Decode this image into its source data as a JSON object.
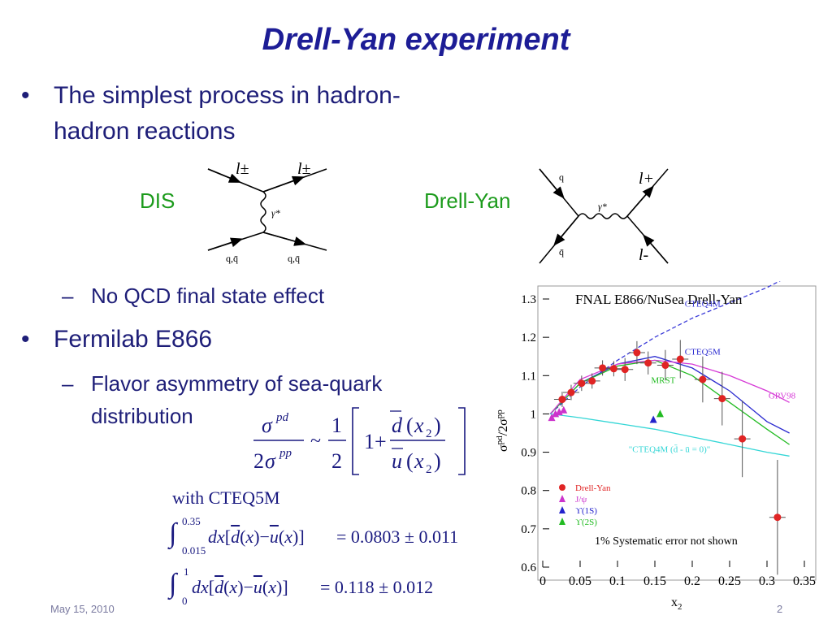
{
  "slide": {
    "title": "Drell-Yan experiment",
    "bullet1_line1": "The simplest process in hadron-",
    "bullet1_line2": "hadron reactions",
    "dis_label": "DIS",
    "drellyan_label": "Drell-Yan",
    "sub1": "No QCD final state effect",
    "bullet2": "Fermilab E866",
    "sub2_line1": "Flavor asymmetry of sea-quark",
    "sub2_line2": "distribution",
    "with_cteq": "with  CTEQ5M",
    "integral1_result": "= 0.0803 ± 0.011",
    "integral2_result": "= 0.118 ± 0.012",
    "footer_date": "May 15, 2010",
    "page_number": "2"
  },
  "dis_diagram": {
    "lepton_in": "l±",
    "lepton_out": "l±",
    "photon": "γ*",
    "quark_in": "q,q̄",
    "quark_out": "q,q̄"
  },
  "dy_diagram": {
    "quark": "q",
    "antiquark": "q̄",
    "photon": "γ*",
    "lepton_plus": "l+",
    "lepton_minus": "l-"
  },
  "chart_data": {
    "type": "scatter",
    "title": "FNAL E866/NuSea Drell-Yan",
    "xlabel": "x2",
    "ylabel": "σpd/2σpp",
    "xlim": [
      0,
      0.35
    ],
    "ylim": [
      0.6,
      1.35
    ],
    "x_ticks": [
      "0",
      "0.05",
      "0.1",
      "0.15",
      "0.2",
      "0.25",
      "0.3",
      "0.35"
    ],
    "y_ticks": [
      "0.6",
      "0.7",
      "0.8",
      "0.9",
      "1",
      "1.1",
      "1.2",
      "1.3"
    ],
    "annotation": "1% Systematic error not shown",
    "curves": [
      {
        "name": "CTEQ4M",
        "color": "#3a3ad8",
        "dashed": true,
        "points": [
          [
            0.01,
            1.0
          ],
          [
            0.05,
            1.07
          ],
          [
            0.1,
            1.14
          ],
          [
            0.15,
            1.2
          ],
          [
            0.2,
            1.25
          ],
          [
            0.25,
            1.29
          ],
          [
            0.3,
            1.33
          ],
          [
            0.33,
            1.36
          ]
        ]
      },
      {
        "name": "CTEQ5M",
        "color": "#2b2bd0",
        "dashed": false,
        "points": [
          [
            0.01,
            1.0
          ],
          [
            0.05,
            1.08
          ],
          [
            0.1,
            1.13
          ],
          [
            0.15,
            1.15
          ],
          [
            0.2,
            1.12
          ],
          [
            0.25,
            1.06
          ],
          [
            0.3,
            0.98
          ],
          [
            0.33,
            0.95
          ]
        ]
      },
      {
        "name": "MRST",
        "color": "#22bb22",
        "dashed": false,
        "points": [
          [
            0.01,
            1.0
          ],
          [
            0.05,
            1.08
          ],
          [
            0.1,
            1.125
          ],
          [
            0.15,
            1.14
          ],
          [
            0.2,
            1.1
          ],
          [
            0.25,
            1.03
          ],
          [
            0.3,
            0.96
          ],
          [
            0.33,
            0.92
          ]
        ]
      },
      {
        "name": "GRV98",
        "color": "#d63ad6",
        "dashed": false,
        "points": [
          [
            0.01,
            1.0
          ],
          [
            0.05,
            1.09
          ],
          [
            0.1,
            1.13
          ],
          [
            0.15,
            1.14
          ],
          [
            0.2,
            1.13
          ],
          [
            0.25,
            1.1
          ],
          [
            0.3,
            1.06
          ],
          [
            0.33,
            1.03
          ]
        ]
      },
      {
        "name": "\"CTEQ4M (d̄ - ū = 0)\"",
        "color": "#33d6d6",
        "dashed": false,
        "points": [
          [
            0.01,
            1.0
          ],
          [
            0.05,
            0.99
          ],
          [
            0.1,
            0.975
          ],
          [
            0.15,
            0.96
          ],
          [
            0.2,
            0.94
          ],
          [
            0.25,
            0.92
          ],
          [
            0.3,
            0.9
          ],
          [
            0.33,
            0.89
          ]
        ]
      }
    ],
    "series": [
      {
        "name": "Drell-Yan",
        "color": "#e02424",
        "marker": "circle",
        "points": [
          [
            0.026,
            1.038
          ],
          [
            0.038,
            1.056
          ],
          [
            0.052,
            1.08
          ],
          [
            0.066,
            1.086
          ],
          [
            0.08,
            1.12
          ],
          [
            0.095,
            1.118
          ],
          [
            0.11,
            1.116
          ],
          [
            0.126,
            1.16
          ],
          [
            0.141,
            1.133
          ],
          [
            0.164,
            1.127
          ],
          [
            0.184,
            1.143
          ],
          [
            0.214,
            1.09
          ],
          [
            0.24,
            1.04
          ],
          [
            0.267,
            0.935
          ],
          [
            0.314,
            0.73
          ]
        ],
        "errors": [
          0.02,
          0.02,
          0.02,
          0.02,
          0.02,
          0.02,
          0.03,
          0.03,
          0.03,
          0.04,
          0.05,
          0.06,
          0.07,
          0.1,
          0.15
        ]
      },
      {
        "name": "J/ψ",
        "color": "#cc33cc",
        "marker": "triangle",
        "points": [
          [
            0.012,
            0.99
          ],
          [
            0.017,
            1.0
          ],
          [
            0.022,
            1.005
          ],
          [
            0.028,
            1.01
          ]
        ]
      },
      {
        "name": "ϒ(1S)",
        "color": "#2222cc",
        "marker": "triangle",
        "points": [
          [
            0.148,
            0.985
          ]
        ]
      },
      {
        "name": "ϒ(2S)",
        "color": "#22bb22",
        "marker": "triangle",
        "points": [
          [
            0.157,
            1.0
          ]
        ]
      }
    ]
  }
}
